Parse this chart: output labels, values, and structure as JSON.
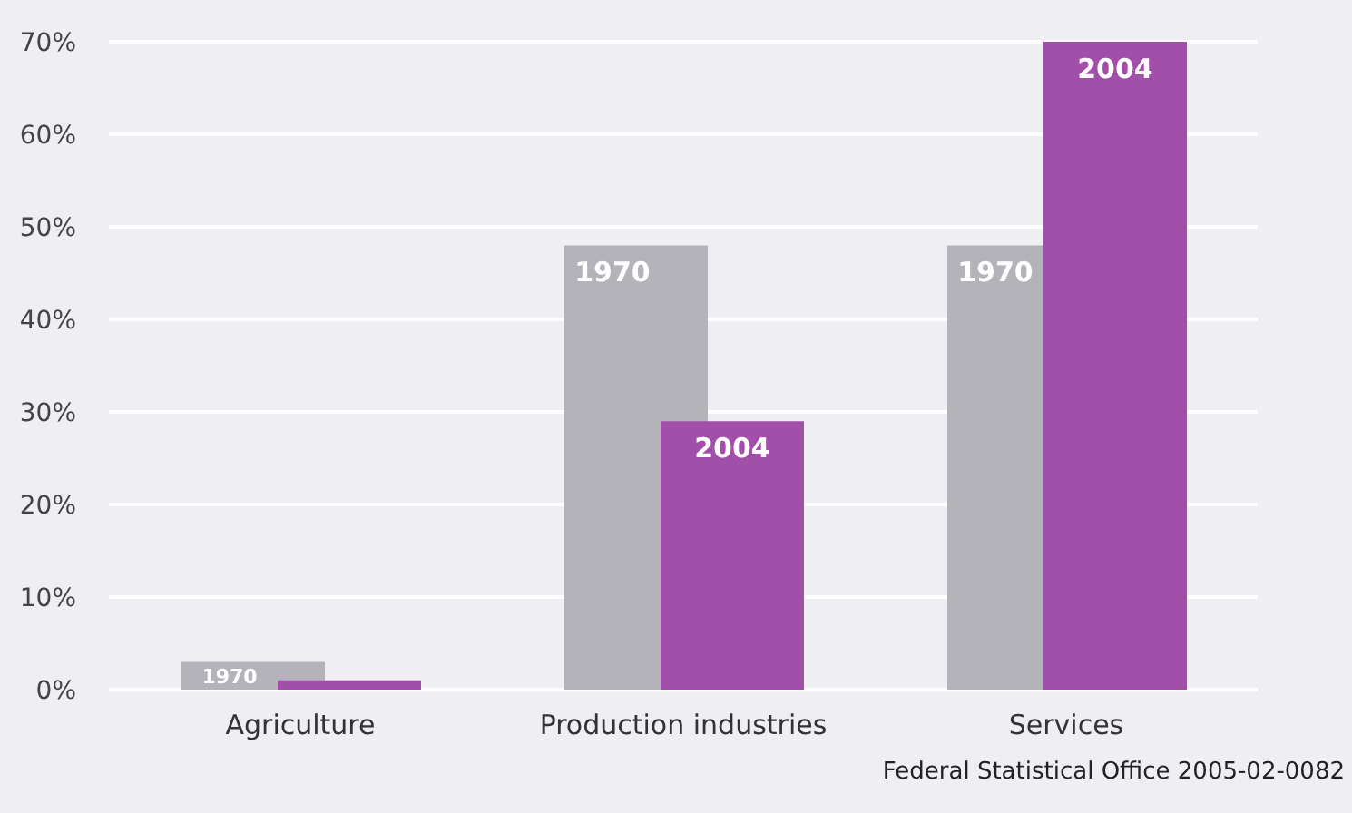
{
  "chart_data": {
    "type": "bar",
    "categories": [
      "Agriculture",
      "Production industries",
      "Services"
    ],
    "series": [
      {
        "name": "1970",
        "color": "#b4b3b9",
        "values": [
          3,
          48,
          48
        ]
      },
      {
        "name": "2004",
        "color": "#a24fa9",
        "values": [
          1,
          29,
          70
        ]
      }
    ],
    "ylim": [
      0,
      70
    ],
    "yticks": [
      {
        "value": 0,
        "label": "0%"
      },
      {
        "value": 10,
        "label": "10%"
      },
      {
        "value": 20,
        "label": "20%"
      },
      {
        "value": 30,
        "label": "30%"
      },
      {
        "value": 40,
        "label": "40%"
      },
      {
        "value": 50,
        "label": "50%"
      },
      {
        "value": 60,
        "label": "60%"
      },
      {
        "value": 70,
        "label": "70%"
      }
    ],
    "grid": "y",
    "legend": false,
    "annotations": [
      "Federal Statistical Office 2005-02-0082"
    ]
  }
}
